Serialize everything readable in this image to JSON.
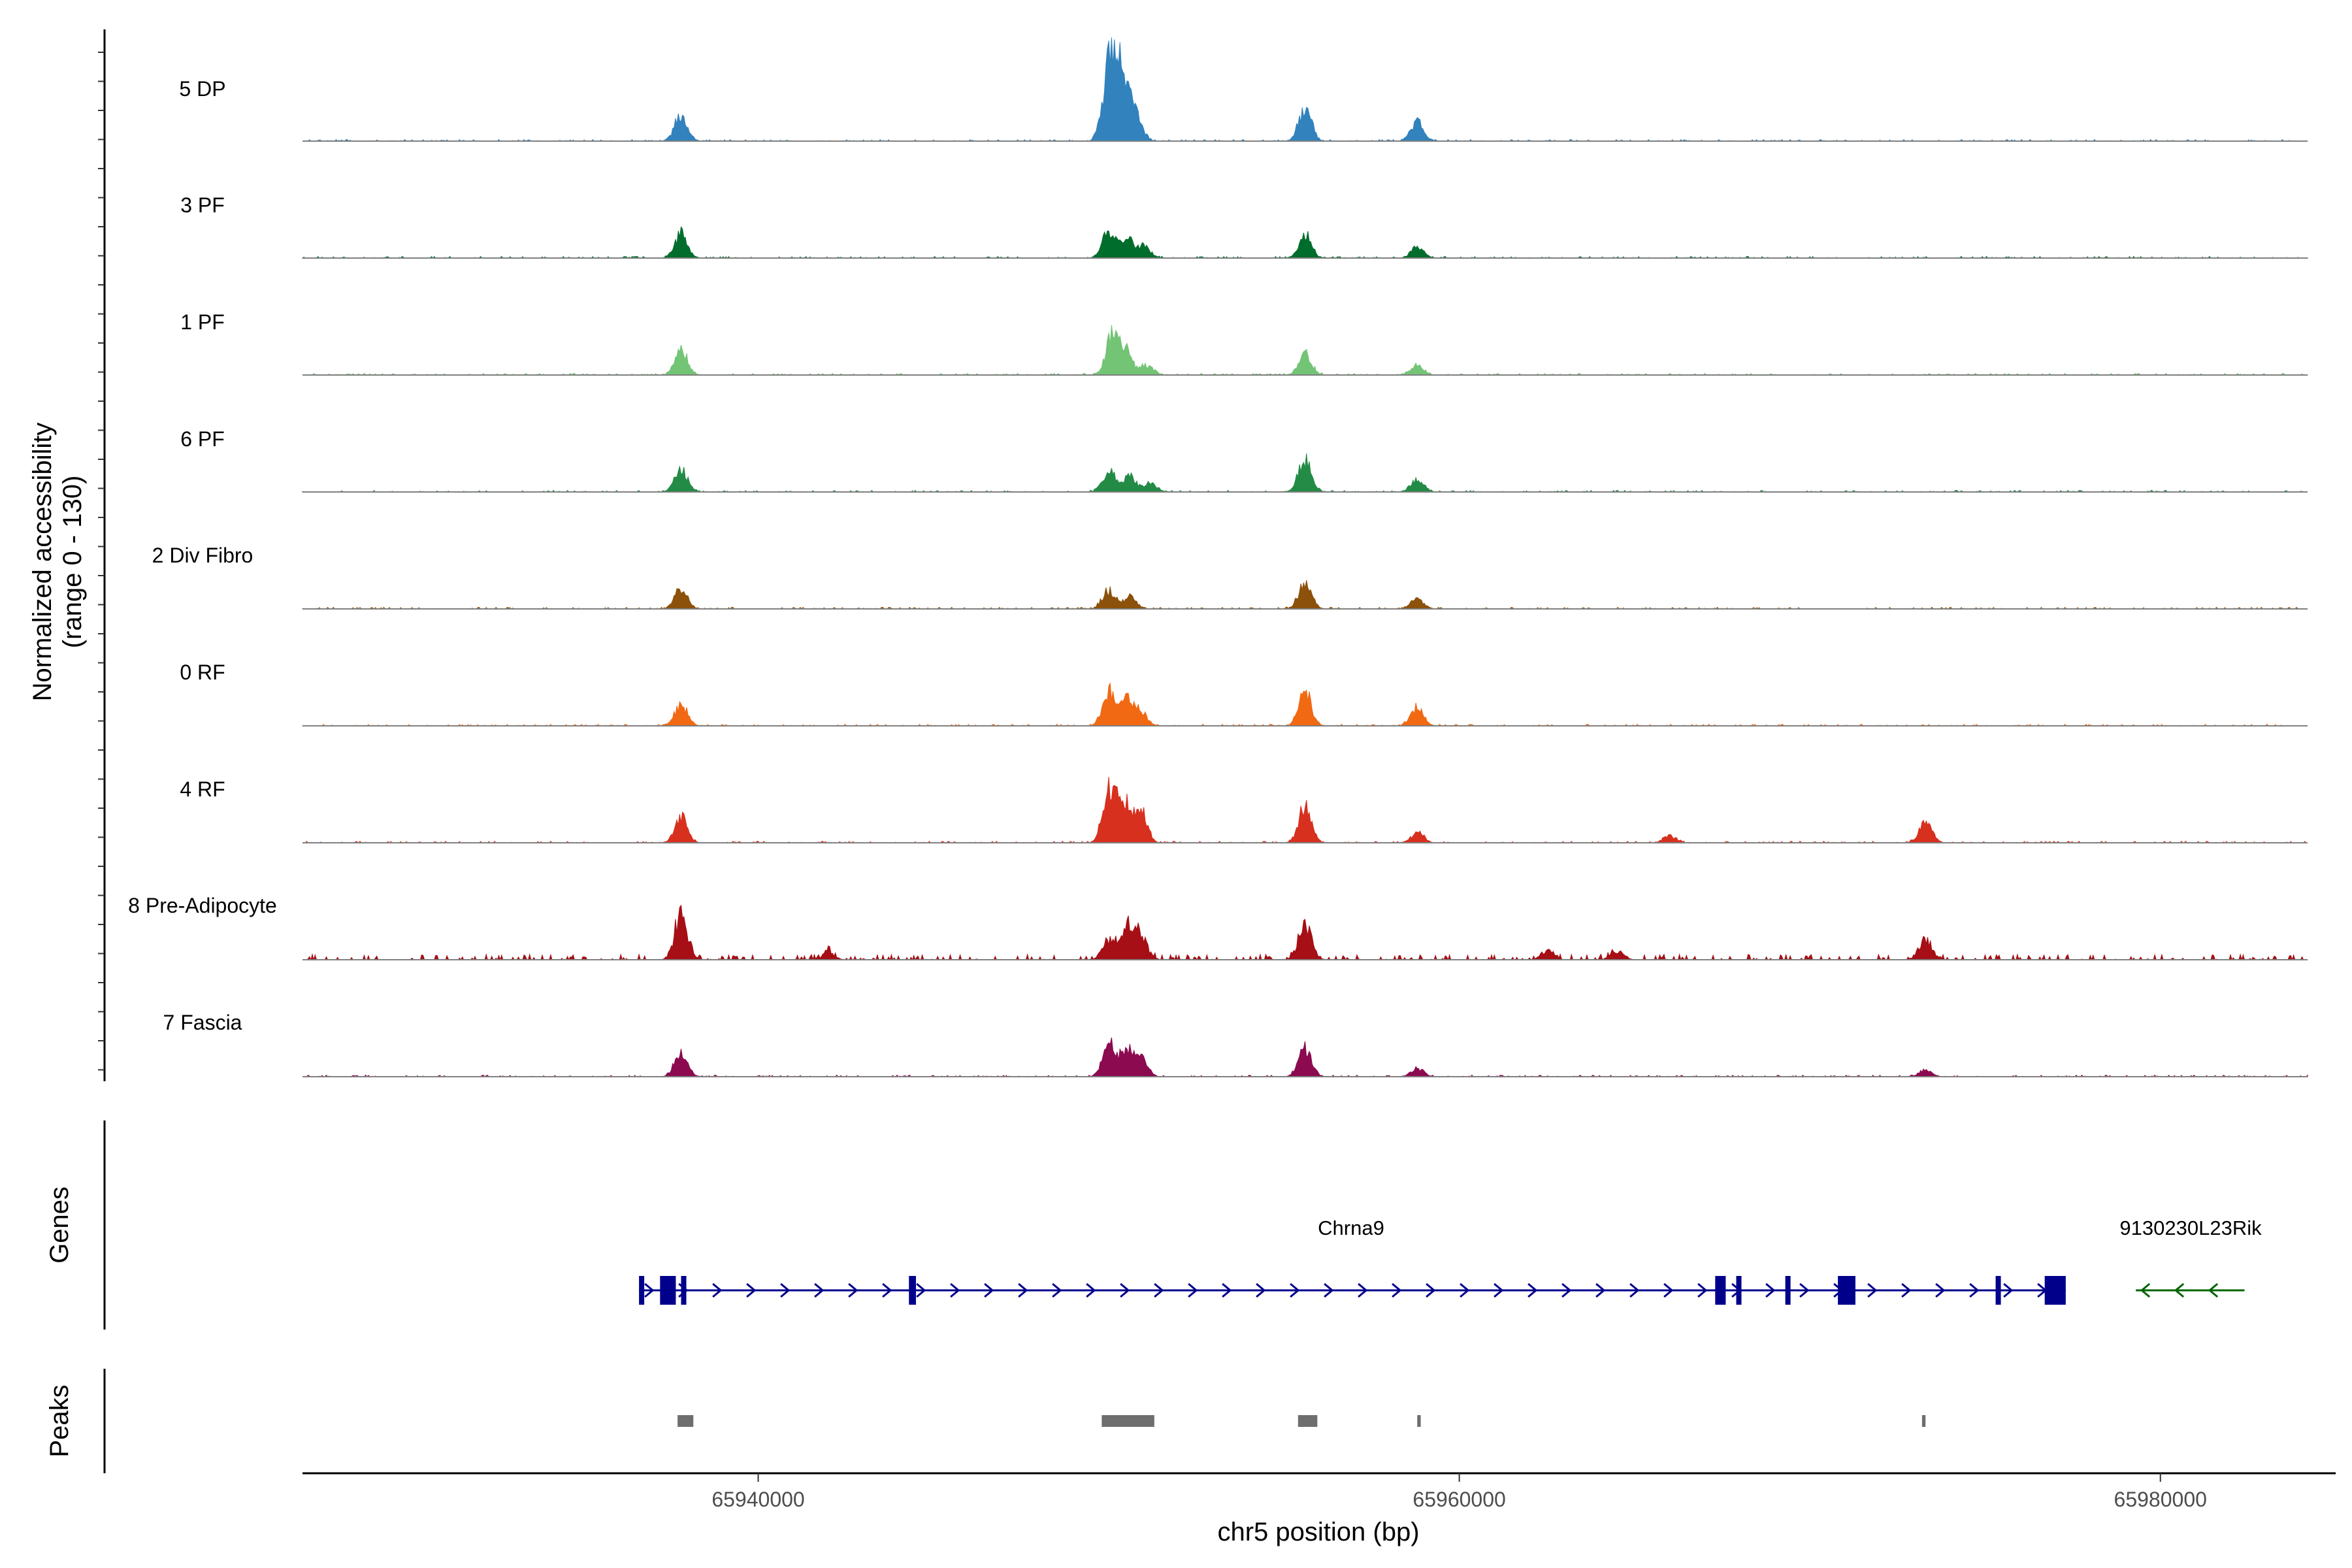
{
  "chart_data": {
    "type": "coverage-track",
    "title": "",
    "chromosome": "chr5",
    "xlabel": "chr5 position (bp)",
    "ylabel_line1": "Normalized accessibility",
    "ylabel_line2": "(range 0 - 130)",
    "y_range": [
      0,
      130
    ],
    "xlim": [
      65927000,
      65985000
    ],
    "x_ticks": [
      65940000,
      65960000,
      65980000
    ],
    "x_tick_labels": [
      "65940000",
      "65960000",
      "65980000"
    ],
    "track_start": 65927000,
    "track_end": 65984200,
    "tracks": [
      {
        "name": "5 DP",
        "color": "#3182bd",
        "peaks": [
          [
            65937800,
            0.32
          ],
          [
            65950000,
            0.8
          ],
          [
            65950250,
            0.6
          ],
          [
            65950500,
            0.42
          ],
          [
            65950800,
            0.25
          ],
          [
            65955600,
            0.38
          ],
          [
            65958800,
            0.22
          ]
        ]
      },
      {
        "name": "3 PF",
        "color": "#006d2c",
        "peaks": [
          [
            65937800,
            0.28
          ],
          [
            65950000,
            0.32
          ],
          [
            65950500,
            0.24
          ],
          [
            65951000,
            0.14
          ],
          [
            65955600,
            0.27
          ],
          [
            65958800,
            0.12
          ]
        ]
      },
      {
        "name": "1 PF",
        "color": "#74c476",
        "peaks": [
          [
            65937800,
            0.3
          ],
          [
            65950100,
            0.46
          ],
          [
            65950500,
            0.28
          ],
          [
            65951100,
            0.12
          ],
          [
            65955600,
            0.24
          ],
          [
            65958800,
            0.12
          ]
        ]
      },
      {
        "name": "6 PF",
        "color": "#238b45",
        "peaks": [
          [
            65937800,
            0.27
          ],
          [
            65950000,
            0.25
          ],
          [
            65950600,
            0.18
          ],
          [
            65951200,
            0.1
          ],
          [
            65955600,
            0.4
          ],
          [
            65958800,
            0.16
          ]
        ]
      },
      {
        "name": "2 Div Fibro",
        "color": "#8c510a",
        "peaks": [
          [
            65937800,
            0.24
          ],
          [
            65950000,
            0.22
          ],
          [
            65950600,
            0.15
          ],
          [
            65955600,
            0.32
          ],
          [
            65958800,
            0.12
          ]
        ]
      },
      {
        "name": "0 RF",
        "color": "#f16913",
        "peaks": [
          [
            65937800,
            0.26
          ],
          [
            65950000,
            0.4
          ],
          [
            65950500,
            0.3
          ],
          [
            65950900,
            0.18
          ],
          [
            65955600,
            0.4
          ],
          [
            65958800,
            0.22
          ]
        ]
      },
      {
        "name": "4 RF",
        "color": "#d7301f",
        "peaks": [
          [
            65937800,
            0.3
          ],
          [
            65950000,
            0.62
          ],
          [
            65950400,
            0.52
          ],
          [
            65950900,
            0.42
          ],
          [
            65955600,
            0.42
          ],
          [
            65958800,
            0.12
          ],
          [
            65966000,
            0.08
          ],
          [
            65973300,
            0.24
          ]
        ]
      },
      {
        "name": "8 Pre-Adipocyte",
        "color": "#a50f15",
        "peaks": [
          [
            65937800,
            0.52
          ],
          [
            65950000,
            0.22
          ],
          [
            65950500,
            0.38
          ],
          [
            65950900,
            0.3
          ],
          [
            65955600,
            0.44
          ],
          [
            65973300,
            0.24
          ],
          [
            65962500,
            0.1
          ],
          [
            65964500,
            0.1
          ],
          [
            65942000,
            0.08
          ]
        ]
      },
      {
        "name": "7 Fascia",
        "color": "#8b0a50",
        "peaks": [
          [
            65937800,
            0.28
          ],
          [
            65950000,
            0.38
          ],
          [
            65950500,
            0.3
          ],
          [
            65950900,
            0.26
          ],
          [
            65955600,
            0.32
          ],
          [
            65958800,
            0.1
          ],
          [
            65973300,
            0.08
          ]
        ]
      }
    ],
    "genes": [
      {
        "name": "Chrna9",
        "strand": "+",
        "color": "#00008b",
        "start": 65936600,
        "end": 65977300,
        "exons": [
          [
            65936600,
            65936700
          ],
          [
            65937200,
            65937650
          ],
          [
            65937800,
            65937900
          ],
          [
            65944300,
            65944500
          ],
          [
            65967300,
            65967600
          ],
          [
            65967900,
            65968000
          ],
          [
            65969300,
            65969400
          ],
          [
            65970800,
            65971300
          ],
          [
            65975300,
            65975400
          ],
          [
            65976700,
            65977300
          ]
        ]
      },
      {
        "name": "9130230L23Rik",
        "strand": "-",
        "color": "#006400",
        "start": 65979300,
        "end": 65982400,
        "exons": []
      }
    ],
    "peak_regions": [
      [
        65937700,
        65938150
      ],
      [
        65949800,
        65951300
      ],
      [
        65955400,
        65955950
      ],
      [
        65958800,
        65958900
      ],
      [
        65973200,
        65973300
      ]
    ],
    "side_labels": [
      "Genes",
      "Peaks"
    ]
  }
}
